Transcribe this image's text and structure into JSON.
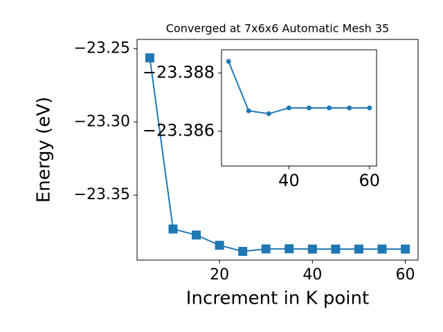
{
  "chart_data": [
    {
      "type": "line",
      "title": "Converged at 7x6x6 Automatic Mesh 35",
      "x_label": "Increment in K point",
      "y_label": "Energy (eV)",
      "x": [
        5,
        10,
        15,
        20,
        25,
        30,
        35,
        40,
        45,
        50,
        55,
        60
      ],
      "series": [
        {
          "color": "#1f77b4",
          "marker": "square",
          "values": [
            -23.2563,
            -23.3731,
            -23.3772,
            -23.3842,
            -23.3884,
            -23.3867,
            -23.3866,
            -23.3868,
            -23.3868,
            -23.3868,
            -23.3868,
            -23.3868
          ]
        }
      ],
      "xlim": [
        2.25,
        62.75
      ],
      "xticks": [
        20,
        40,
        60
      ],
      "ylim": [
        -23.3943,
        -23.2437
      ],
      "yticks": [
        {
          "value": -23.35,
          "label": "−23.35"
        },
        {
          "value": -23.3,
          "label": "−23.30"
        },
        {
          "value": -23.25,
          "label": "−23.25"
        }
      ]
    },
    {
      "type": "line",
      "x": [
        25,
        30,
        35,
        40,
        45,
        50,
        55,
        60
      ],
      "series": [
        {
          "color": "#1f77b4",
          "marker": "circle",
          "values": [
            -23.3884,
            -23.3867,
            -23.3866,
            -23.3868,
            -23.3868,
            -23.3868,
            -23.3868,
            -23.3868
          ]
        }
      ],
      "xlim": [
        23.25,
        61.75
      ],
      "xticks": [
        40,
        60
      ],
      "ylim": [
        -23.3848,
        -23.3888
      ],
      "yticks": [
        {
          "value": -23.386,
          "label": "−23.386"
        },
        {
          "value": -23.388,
          "label": "−23.388"
        }
      ]
    }
  ]
}
